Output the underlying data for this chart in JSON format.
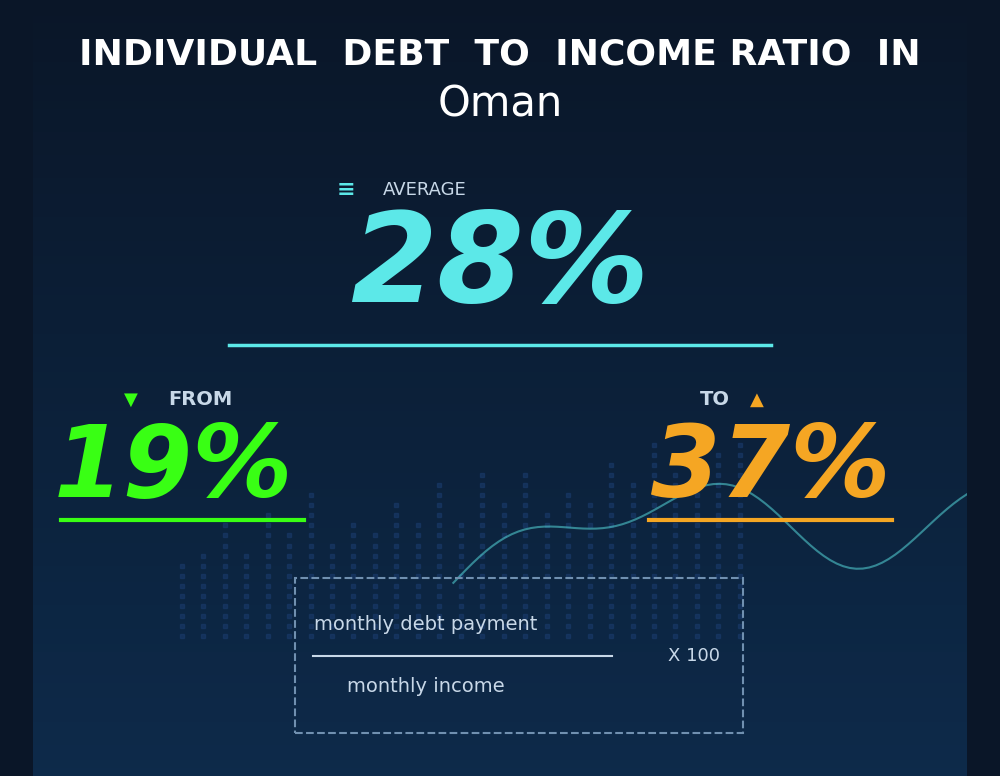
{
  "title_line1": "INDIVIDUAL  DEBT  TO  INCOME RATIO  IN",
  "title_line2": "Oman",
  "bg_color_top": "#0a1628",
  "bg_color_bottom": "#0d2a4a",
  "average_label": "AVERAGE",
  "average_value": "28%",
  "average_color": "#5ce8e8",
  "average_line_color": "#5ce8e8",
  "from_label": "FROM",
  "from_value": "19%",
  "from_color": "#39ff14",
  "from_underline_color": "#39ff14",
  "to_label": "TO",
  "to_value": "37%",
  "to_color": "#f5a623",
  "to_underline_color": "#f5a623",
  "formula_numerator": "monthly debt payment",
  "formula_denominator": "monthly income",
  "formula_multiplier": "X 100",
  "formula_border_color": "#7090b0",
  "formula_text_color": "#c8d8e8",
  "title_color": "#ffffff",
  "label_color": "#c8d8e8",
  "down_arrow_color": "#39ff14",
  "up_arrow_color": "#f5a623",
  "equals_color": "#5ce8e8"
}
